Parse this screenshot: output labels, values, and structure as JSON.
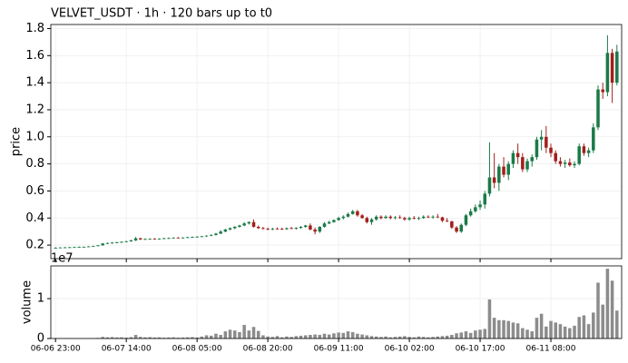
{
  "chart_data": {
    "type": "candlestick",
    "title": "VELVET_USDT  ·  1h  ·  120 bars up to t0",
    "ylabel": "price",
    "categories": [
      "06-06 23:00",
      null,
      null,
      null,
      null,
      null,
      null,
      null,
      null,
      null,
      null,
      null,
      null,
      null,
      null,
      "06-07 14:00",
      null,
      null,
      null,
      null,
      null,
      null,
      null,
      null,
      null,
      null,
      null,
      null,
      null,
      null,
      "06-08 05:00",
      null,
      null,
      null,
      null,
      null,
      null,
      null,
      null,
      null,
      null,
      null,
      null,
      null,
      null,
      "06-08 20:00",
      null,
      null,
      null,
      null,
      null,
      null,
      null,
      null,
      null,
      null,
      null,
      null,
      null,
      null,
      "06-09 11:00",
      null,
      null,
      null,
      null,
      null,
      null,
      null,
      null,
      null,
      null,
      null,
      null,
      null,
      null,
      "06-10 02:00",
      null,
      null,
      null,
      null,
      null,
      null,
      null,
      null,
      null,
      null,
      null,
      null,
      null,
      null,
      "06-10 17:00",
      null,
      null,
      null,
      null,
      null,
      null,
      null,
      null,
      null,
      null,
      null,
      null,
      null,
      null,
      "06-11 08:00",
      null,
      null,
      null,
      null,
      null,
      null,
      null,
      null,
      null,
      null,
      null,
      null,
      null,
      null
    ],
    "open": [
      0.18,
      0.18,
      0.182,
      0.183,
      0.184,
      0.185,
      0.186,
      0.187,
      0.19,
      0.193,
      0.198,
      0.212,
      0.215,
      0.218,
      0.22,
      0.224,
      0.228,
      0.235,
      0.25,
      0.242,
      0.245,
      0.247,
      0.245,
      0.248,
      0.25,
      0.252,
      0.255,
      0.252,
      0.256,
      0.258,
      0.26,
      0.262,
      0.265,
      0.27,
      0.275,
      0.285,
      0.3,
      0.315,
      0.325,
      0.335,
      0.345,
      0.36,
      0.37,
      0.335,
      0.325,
      0.32,
      0.318,
      0.322,
      0.32,
      0.318,
      0.325,
      0.322,
      0.328,
      0.335,
      0.345,
      0.315,
      0.3,
      0.335,
      0.36,
      0.37,
      0.385,
      0.4,
      0.41,
      0.43,
      0.45,
      0.42,
      0.4,
      0.37,
      0.39,
      0.41,
      0.4,
      0.41,
      0.4,
      0.405,
      0.4,
      0.39,
      0.4,
      0.395,
      0.4,
      0.41,
      0.405,
      0.41,
      0.405,
      0.38,
      0.375,
      0.33,
      0.3,
      0.35,
      0.42,
      0.45,
      0.48,
      0.5,
      0.58,
      0.7,
      0.66,
      0.78,
      0.72,
      0.8,
      0.88,
      0.85,
      0.76,
      0.82,
      0.85,
      0.98,
      1.0,
      0.92,
      0.88,
      0.82,
      0.8,
      0.81,
      0.79,
      0.8,
      0.93,
      0.88,
      0.9,
      1.07,
      1.35,
      1.33,
      1.62,
      1.4
    ],
    "high": [
      0.185,
      0.185,
      0.186,
      0.187,
      0.188,
      0.19,
      0.19,
      0.192,
      0.195,
      0.2,
      0.215,
      0.22,
      0.222,
      0.225,
      0.228,
      0.232,
      0.24,
      0.26,
      0.255,
      0.25,
      0.25,
      0.252,
      0.25,
      0.255,
      0.256,
      0.258,
      0.26,
      0.258,
      0.262,
      0.264,
      0.266,
      0.268,
      0.272,
      0.28,
      0.29,
      0.31,
      0.32,
      0.33,
      0.34,
      0.35,
      0.37,
      0.375,
      0.39,
      0.345,
      0.335,
      0.33,
      0.328,
      0.33,
      0.328,
      0.33,
      0.335,
      0.332,
      0.34,
      0.35,
      0.36,
      0.33,
      0.34,
      0.37,
      0.38,
      0.39,
      0.41,
      0.42,
      0.44,
      0.46,
      0.46,
      0.43,
      0.41,
      0.4,
      0.42,
      0.42,
      0.42,
      0.42,
      0.415,
      0.42,
      0.41,
      0.41,
      0.415,
      0.41,
      0.42,
      0.42,
      0.42,
      0.43,
      0.41,
      0.4,
      0.38,
      0.34,
      0.36,
      0.43,
      0.47,
      0.5,
      0.53,
      0.6,
      0.96,
      0.88,
      0.8,
      0.85,
      0.82,
      0.9,
      0.95,
      0.88,
      0.84,
      0.87,
      1.0,
      1.05,
      1.08,
      0.95,
      0.9,
      0.85,
      0.83,
      0.84,
      0.82,
      0.95,
      0.95,
      0.92,
      1.1,
      1.38,
      1.4,
      1.75,
      1.65,
      1.68
    ],
    "low": [
      0.175,
      0.178,
      0.18,
      0.18,
      0.182,
      0.183,
      0.184,
      0.185,
      0.188,
      0.19,
      0.196,
      0.208,
      0.21,
      0.214,
      0.216,
      0.22,
      0.225,
      0.23,
      0.238,
      0.238,
      0.24,
      0.242,
      0.24,
      0.244,
      0.245,
      0.248,
      0.25,
      0.248,
      0.252,
      0.254,
      0.255,
      0.258,
      0.26,
      0.266,
      0.27,
      0.28,
      0.295,
      0.31,
      0.318,
      0.33,
      0.34,
      0.352,
      0.33,
      0.32,
      0.315,
      0.31,
      0.31,
      0.315,
      0.312,
      0.312,
      0.318,
      0.315,
      0.32,
      0.328,
      0.31,
      0.28,
      0.29,
      0.33,
      0.355,
      0.365,
      0.38,
      0.39,
      0.405,
      0.425,
      0.41,
      0.395,
      0.36,
      0.35,
      0.38,
      0.39,
      0.395,
      0.39,
      0.39,
      0.395,
      0.38,
      0.38,
      0.39,
      0.385,
      0.395,
      0.4,
      0.395,
      0.4,
      0.37,
      0.37,
      0.32,
      0.29,
      0.29,
      0.34,
      0.41,
      0.44,
      0.46,
      0.47,
      0.56,
      0.62,
      0.6,
      0.7,
      0.68,
      0.77,
      0.8,
      0.74,
      0.74,
      0.78,
      0.83,
      0.9,
      0.88,
      0.85,
      0.8,
      0.78,
      0.77,
      0.78,
      0.77,
      0.79,
      0.86,
      0.85,
      0.88,
      1.05,
      1.28,
      1.3,
      1.25,
      1.38
    ],
    "close": [
      0.18,
      0.182,
      0.183,
      0.184,
      0.185,
      0.186,
      0.187,
      0.19,
      0.193,
      0.198,
      0.212,
      0.215,
      0.218,
      0.22,
      0.224,
      0.228,
      0.235,
      0.25,
      0.242,
      0.245,
      0.247,
      0.245,
      0.248,
      0.25,
      0.252,
      0.255,
      0.252,
      0.256,
      0.258,
      0.26,
      0.262,
      0.265,
      0.27,
      0.275,
      0.285,
      0.3,
      0.315,
      0.325,
      0.335,
      0.345,
      0.36,
      0.37,
      0.335,
      0.325,
      0.32,
      0.318,
      0.322,
      0.32,
      0.318,
      0.325,
      0.322,
      0.328,
      0.335,
      0.345,
      0.315,
      0.3,
      0.335,
      0.36,
      0.37,
      0.385,
      0.4,
      0.41,
      0.43,
      0.45,
      0.42,
      0.4,
      0.37,
      0.39,
      0.41,
      0.4,
      0.41,
      0.4,
      0.405,
      0.4,
      0.39,
      0.4,
      0.395,
      0.4,
      0.41,
      0.405,
      0.41,
      0.405,
      0.38,
      0.375,
      0.33,
      0.3,
      0.35,
      0.42,
      0.45,
      0.48,
      0.5,
      0.58,
      0.7,
      0.66,
      0.78,
      0.72,
      0.8,
      0.88,
      0.85,
      0.76,
      0.82,
      0.85,
      0.98,
      1.0,
      0.92,
      0.88,
      0.82,
      0.8,
      0.81,
      0.79,
      0.8,
      0.93,
      0.88,
      0.9,
      1.07,
      1.35,
      1.33,
      1.62,
      1.4,
      1.63
    ],
    "up_color": "#1b7a48",
    "down_color": "#a31f1c",
    "xlim": [
      -1,
      120
    ],
    "ylim": [
      0.1,
      1.83
    ],
    "yticks": [
      0.2,
      0.4,
      0.6,
      0.8,
      {
        "value": 1,
        "label": "1.0"
      },
      1.2,
      1.4,
      1.6,
      1.8
    ],
    "grid": true,
    "volume": {
      "ylabel": "volume",
      "offset_label": "1e7",
      "color": "#8c8c8c",
      "ylim": [
        0,
        18200000
      ],
      "yticks": [
        0,
        {
          "value": 10000000,
          "label": "1"
        }
      ],
      "values": [
        100000,
        50000,
        80000,
        60000,
        50000,
        70000,
        60000,
        80000,
        100000,
        150000,
        400000,
        300000,
        350000,
        250000,
        300000,
        200000,
        350000,
        900000,
        400000,
        300000,
        350000,
        250000,
        300000,
        200000,
        250000,
        300000,
        200000,
        250000,
        300000,
        350000,
        250000,
        500000,
        800000,
        700000,
        1200000,
        900000,
        1800000,
        2200000,
        2000000,
        1600000,
        3400000,
        2000000,
        2900000,
        1900000,
        800000,
        500000,
        400000,
        600000,
        300000,
        500000,
        400000,
        600000,
        700000,
        800000,
        900000,
        1000000,
        900000,
        1200000,
        1000000,
        1300000,
        1500000,
        1400000,
        1800000,
        1600000,
        1200000,
        1000000,
        800000,
        600000,
        500000,
        400000,
        500000,
        300000,
        400000,
        500000,
        600000,
        400000,
        300000,
        500000,
        400000,
        300000,
        400000,
        500000,
        600000,
        700000,
        900000,
        1300000,
        1500000,
        1800000,
        1400000,
        2000000,
        2200000,
        2400000,
        9800000,
        5200000,
        4600000,
        4600000,
        4400000,
        4000000,
        3800000,
        2600000,
        2200000,
        1800000,
        5200000,
        6200000,
        3000000,
        4400000,
        4000000,
        3600000,
        3000000,
        2600000,
        3200000,
        5400000,
        5800000,
        3600000,
        6500000,
        14000000,
        8500000,
        17500000,
        14500000,
        7000000
      ]
    }
  }
}
